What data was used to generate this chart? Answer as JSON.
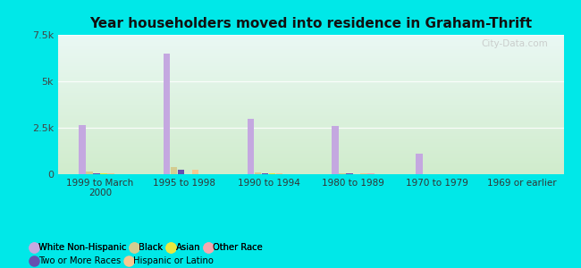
{
  "title": "Year householders moved into residence in Graham-Thrift",
  "categories": [
    "1999 to March\n2000",
    "1995 to 1998",
    "1990 to 1994",
    "1980 to 1989",
    "1970 to 1979",
    "1969 or earlier"
  ],
  "series_order": [
    "White Non-Hispanic",
    "Black",
    "Two or More Races",
    "Asian",
    "Hispanic or Latino",
    "Other Race"
  ],
  "series": {
    "White Non-Hispanic": {
      "values": [
        2650,
        6500,
        3000,
        2600,
        1100,
        0
      ],
      "color": "#c4a8e0"
    },
    "Black": {
      "values": [
        130,
        370,
        80,
        70,
        15,
        0
      ],
      "color": "#d4cc90"
    },
    "Two or More Races": {
      "values": [
        50,
        220,
        40,
        30,
        8,
        0
      ],
      "color": "#6650b0"
    },
    "Asian": {
      "values": [
        25,
        15,
        25,
        15,
        0,
        0
      ],
      "color": "#e8e840"
    },
    "Hispanic or Latino": {
      "values": [
        45,
        260,
        70,
        50,
        8,
        0
      ],
      "color": "#f5c890"
    },
    "Other Race": {
      "values": [
        8,
        8,
        8,
        60,
        8,
        0
      ],
      "color": "#f5a8b0"
    }
  },
  "ylim": [
    0,
    7500
  ],
  "yticks": [
    0,
    2500,
    5000,
    7500
  ],
  "ytick_labels": [
    "0",
    "2.5k",
    "5k",
    "7.5k"
  ],
  "fig_bg": "#00e8e8",
  "plot_bg_top": "#eaf8f4",
  "plot_bg_bottom": "#d0eccc",
  "watermark": "City-Data.com",
  "legend_row1": [
    [
      "White Non-Hispanic",
      "#c4a8e0"
    ],
    [
      "Black",
      "#d4cc90"
    ],
    [
      "Asian",
      "#e8e840"
    ],
    [
      "Other Race",
      "#f5a8b0"
    ]
  ],
  "legend_row2": [
    [
      "Two or More Races",
      "#6650b0"
    ],
    [
      "Hispanic or Latino",
      "#f5c890"
    ]
  ]
}
